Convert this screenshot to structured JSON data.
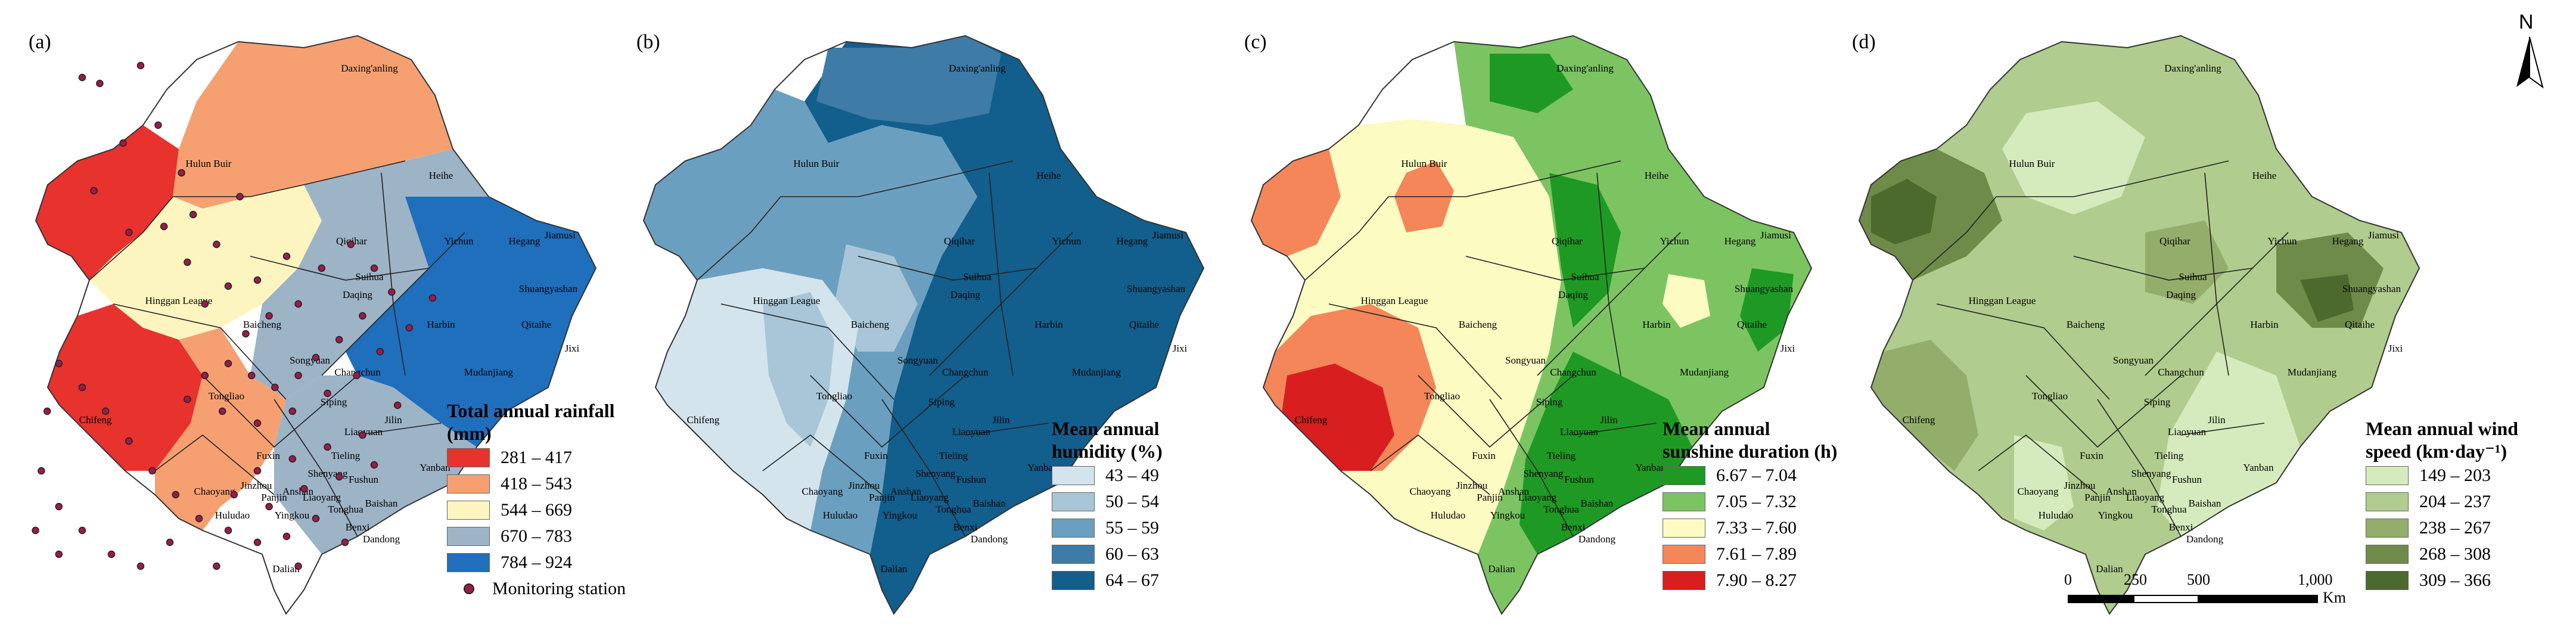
{
  "panels": [
    {
      "label": "(a)",
      "legend_title": "Total annual rainfall (mm)",
      "classes": [
        "281 – 417",
        "418 – 543",
        "544 – 669",
        "670 – 783",
        "784 – 924"
      ],
      "colors": [
        "#e8322d",
        "#f6a071",
        "#fdf5bf",
        "#9db3c6",
        "#1f6fbd"
      ],
      "extra_legend": "Monitoring station"
    },
    {
      "label": "(b)",
      "legend_title": "Mean annual humidity (%)",
      "classes": [
        "43 – 49",
        "50 – 54",
        "55 – 59",
        "60 – 63",
        "64 – 67"
      ],
      "colors": [
        "#d3e4ec",
        "#a8c6d8",
        "#6b9fbf",
        "#3e7ba6",
        "#125e8c"
      ]
    },
    {
      "label": "(c)",
      "legend_title": "Mean annual sunshine duration (h)",
      "classes": [
        "6.67 – 7.04",
        "7.05 – 7.32",
        "7.33 – 7.60",
        "7.61 – 7.89",
        "7.90 – 8.27"
      ],
      "colors": [
        "#1e9a24",
        "#7cc462",
        "#fbfbc2",
        "#f4865a",
        "#d81e1e"
      ]
    },
    {
      "label": "(d)",
      "legend_title": "Mean annual wind speed (km·day⁻¹)",
      "classes": [
        "149 – 203",
        "204 – 237",
        "238 – 267",
        "268 – 308",
        "309 – 366"
      ],
      "colors": [
        "#d5ebbd",
        "#b0cc8e",
        "#93ae6b",
        "#6f8b49",
        "#4c6a2d"
      ]
    }
  ],
  "place_names": [
    "Daxing'anling",
    "Hulun Buir",
    "Heihe",
    "Qiqihar",
    "Yichun",
    "Hegang",
    "Jiamusi",
    "Suihua",
    "Shuangyashan",
    "Hinggan League",
    "Daqing",
    "Harbin",
    "Qitaihe",
    "Jixi",
    "Baicheng",
    "Mudanjiang",
    "Songyuan",
    "Tongliao",
    "Changchun",
    "Siping",
    "Chifeng",
    "Jilin",
    "Liaoyuan",
    "Yanban",
    "Fuxin",
    "Tieling",
    "Shenyang",
    "Fushun",
    "Chaoyang",
    "Jinzhou",
    "Baishan",
    "Tonghua",
    "Huludao",
    "Yingkou",
    "Benxi",
    "Dandong",
    "Anshan",
    "Liaoyang",
    "Panjin",
    "Dalian"
  ],
  "north_label": "N",
  "scale": {
    "ticks": [
      "0",
      "250",
      "500",
      "1,000"
    ],
    "unit": "Km"
  },
  "stations": [
    [
      0.1,
      0.1
    ],
    [
      0.13,
      0.11
    ],
    [
      0.2,
      0.08
    ],
    [
      0.17,
      0.21
    ],
    [
      0.23,
      0.18
    ],
    [
      0.12,
      0.29
    ],
    [
      0.27,
      0.26
    ],
    [
      0.18,
      0.36
    ],
    [
      0.24,
      0.35
    ],
    [
      0.29,
      0.33
    ],
    [
      0.33,
      0.38
    ],
    [
      0.28,
      0.41
    ],
    [
      0.37,
      0.3
    ],
    [
      0.35,
      0.45
    ],
    [
      0.31,
      0.48
    ],
    [
      0.4,
      0.44
    ],
    [
      0.45,
      0.4
    ],
    [
      0.42,
      0.5
    ],
    [
      0.38,
      0.53
    ],
    [
      0.47,
      0.48
    ],
    [
      0.51,
      0.42
    ],
    [
      0.56,
      0.38
    ],
    [
      0.6,
      0.42
    ],
    [
      0.63,
      0.46
    ],
    [
      0.58,
      0.5
    ],
    [
      0.54,
      0.54
    ],
    [
      0.5,
      0.57
    ],
    [
      0.47,
      0.6
    ],
    [
      0.43,
      0.62
    ],
    [
      0.39,
      0.6
    ],
    [
      0.35,
      0.58
    ],
    [
      0.31,
      0.6
    ],
    [
      0.28,
      0.64
    ],
    [
      0.34,
      0.66
    ],
    [
      0.4,
      0.68
    ],
    [
      0.46,
      0.66
    ],
    [
      0.52,
      0.63
    ],
    [
      0.57,
      0.6
    ],
    [
      0.61,
      0.56
    ],
    [
      0.66,
      0.52
    ],
    [
      0.7,
      0.47
    ],
    [
      0.64,
      0.65
    ],
    [
      0.58,
      0.7
    ],
    [
      0.52,
      0.72
    ],
    [
      0.46,
      0.74
    ],
    [
      0.4,
      0.76
    ],
    [
      0.36,
      0.8
    ],
    [
      0.42,
      0.82
    ],
    [
      0.48,
      0.79
    ],
    [
      0.54,
      0.77
    ],
    [
      0.6,
      0.75
    ],
    [
      0.5,
      0.84
    ],
    [
      0.45,
      0.87
    ],
    [
      0.4,
      0.88
    ],
    [
      0.35,
      0.86
    ],
    [
      0.3,
      0.84
    ],
    [
      0.26,
      0.8
    ],
    [
      0.22,
      0.76
    ],
    [
      0.18,
      0.71
    ],
    [
      0.14,
      0.66
    ],
    [
      0.1,
      0.62
    ],
    [
      0.06,
      0.58
    ],
    [
      0.04,
      0.66
    ],
    [
      0.03,
      0.76
    ],
    [
      0.06,
      0.82
    ],
    [
      0.1,
      0.86
    ],
    [
      0.15,
      0.9
    ],
    [
      0.2,
      0.92
    ],
    [
      0.25,
      0.88
    ],
    [
      0.55,
      0.88
    ],
    [
      0.47,
      0.92
    ],
    [
      0.33,
      0.92
    ],
    [
      0.02,
      0.86
    ],
    [
      0.06,
      0.9
    ]
  ]
}
